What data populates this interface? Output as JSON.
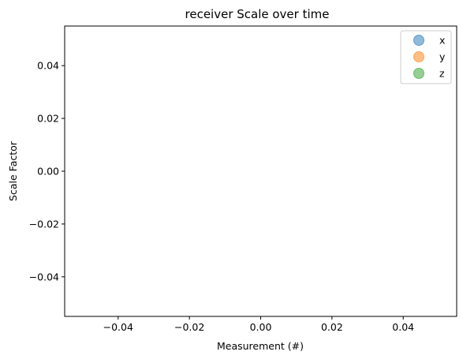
{
  "chart_data": {
    "type": "scatter",
    "title": "receiver Scale over time",
    "xlabel": "Measurement (#)",
    "ylabel": "Scale Factor",
    "xlim": [
      -0.055,
      0.055
    ],
    "ylim": [
      -0.055,
      0.055
    ],
    "x_ticks": [
      -0.04,
      -0.02,
      0.0,
      0.02,
      0.04
    ],
    "y_ticks": [
      0.04,
      0.02,
      0.0,
      -0.02,
      -0.04
    ],
    "x_tick_labels": [
      "−0.04",
      "−0.02",
      "0.00",
      "0.02",
      "0.04"
    ],
    "y_tick_labels": [
      "0.04",
      "0.02",
      "0.00",
      "−0.02",
      "−0.04"
    ],
    "grid": false,
    "legend_position": "top-right",
    "series": [
      {
        "name": "x",
        "color": "#1f77b4",
        "x": [],
        "y": []
      },
      {
        "name": "y",
        "color": "#ff7f0e",
        "x": [],
        "y": []
      },
      {
        "name": "z",
        "color": "#2ca02c",
        "x": [],
        "y": []
      }
    ]
  }
}
